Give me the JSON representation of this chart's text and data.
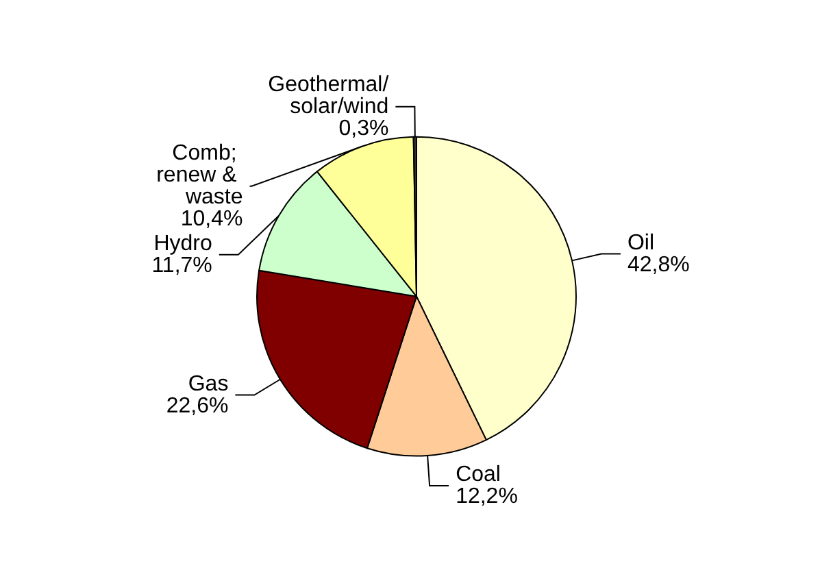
{
  "chart_data": {
    "type": "pie",
    "categories": [
      "Oil",
      "Coal",
      "Gas",
      "Hydro",
      "Comb; renew & waste",
      "Geothermal/solar/wind"
    ],
    "values": [
      42.8,
      12.2,
      22.6,
      11.7,
      10.4,
      0.3
    ],
    "value_labels": [
      "42,8%",
      "12,2%",
      "22,6%",
      "11,7%",
      "10,4%",
      "0,3%"
    ],
    "colors": [
      "#ffffcc",
      "#ffcc99",
      "#800000",
      "#ccffcc",
      "#ffff99",
      "#333333"
    ],
    "legend": false
  }
}
